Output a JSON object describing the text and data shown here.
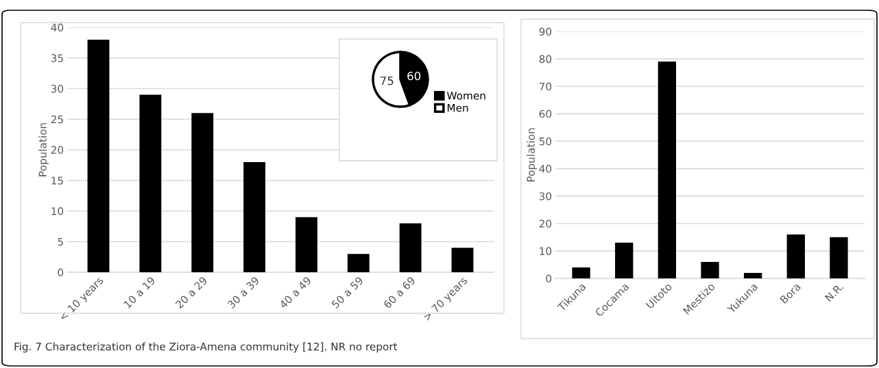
{
  "chart_data": [
    {
      "type": "bar",
      "ylabel": "Population",
      "categories": [
        "< 10 years",
        "10 a 19",
        "20 a 29",
        "30 a 39",
        "40 a 49",
        "50 a 59",
        "60 a 69",
        "> 70 years"
      ],
      "series": [
        {
          "color": "#000000",
          "values": [
            38,
            29,
            26,
            18,
            9,
            3,
            8,
            4
          ]
        }
      ],
      "ylim": [
        0,
        40
      ],
      "yticks": [
        0,
        5,
        10,
        15,
        20,
        25,
        30,
        35,
        40
      ],
      "grid": "y",
      "legend": false,
      "annotations": [
        "Fig. 7 Characterization of the Ziora-Amena community [12]. NR no report"
      ]
    },
    {
      "type": "pie",
      "categories": [
        "Women",
        "Men"
      ],
      "values": [
        60,
        75
      ],
      "colors": [
        "#000000",
        "#ffffff"
      ],
      "data_labels": true,
      "legend": "bottom right"
    },
    {
      "type": "bar",
      "ylabel": "Population",
      "categories": [
        "Tikuna",
        "Cocama",
        "Uitoto",
        "Mestizo",
        "Yukuna",
        "Bora",
        "N.R."
      ],
      "series": [
        {
          "color": "#000000",
          "values": [
            4,
            13,
            79,
            6,
            2,
            16,
            15
          ]
        }
      ],
      "ylim": [
        0,
        90
      ],
      "yticks": [
        0,
        10,
        20,
        30,
        40,
        50,
        60,
        70,
        80,
        90
      ],
      "grid": "y",
      "legend": false
    }
  ]
}
